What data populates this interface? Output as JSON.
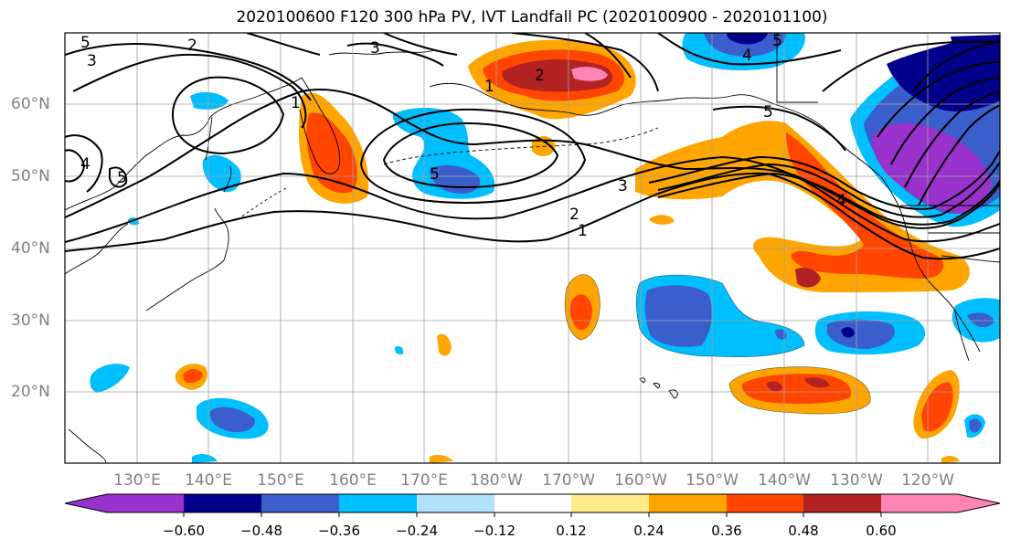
{
  "title": "2020100600 F120 300 hPa PV, IVT Landfall PC (2020100900 - 2020101100)",
  "latitude_labels": [
    "60°N",
    "50°N",
    "40°N",
    "30°N",
    "20°N"
  ],
  "longitude_labels": [
    "130°E",
    "140°E",
    "150°E",
    "160°E",
    "170°E",
    "180°W",
    "170°W",
    "160°W",
    "150°W",
    "140°W",
    "130°W",
    "120°W"
  ],
  "colorbar": {
    "tick_labels": [
      "−0.60",
      "−0.48",
      "−0.36",
      "−0.24",
      "−0.12",
      "0.12",
      "0.24",
      "0.36",
      "0.48",
      "0.60"
    ],
    "colors": [
      "#9932cc",
      "#00008b",
      "#3a5fcd",
      "#00bfff",
      "#b2e2ff",
      "#ffffff",
      "#ffeb8a",
      "#ffa500",
      "#ff4500",
      "#b22222",
      "#ff85b4"
    ]
  },
  "contour_labels": [
    "1",
    "2",
    "3",
    "4",
    "5"
  ]
}
